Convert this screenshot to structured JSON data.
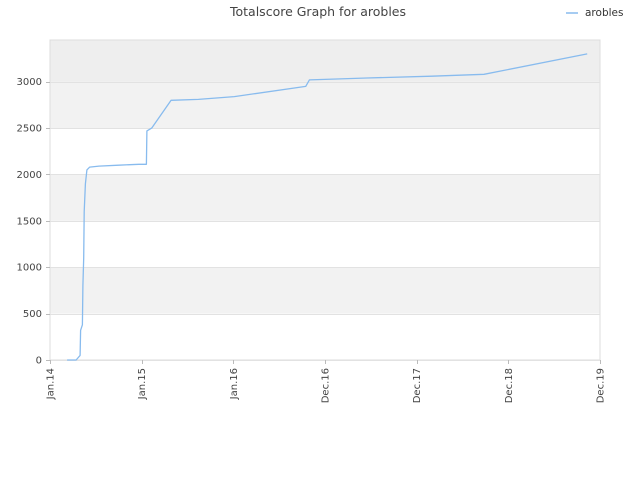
{
  "title": "Totalscore Graph for arobles",
  "chart_data": {
    "type": "line",
    "title": "Totalscore Graph for arobles",
    "xlabel": "",
    "ylabel": "",
    "x_tick_labels": [
      "Jan.14",
      "Jan.15",
      "Jan.16",
      "Dec.16",
      "Dec.17",
      "Dec.18",
      "Dec.19"
    ],
    "x_tick_dates": [
      "2014-01-01",
      "2015-01-01",
      "2016-01-01",
      "2016-12-31",
      "2017-12-31",
      "2018-12-31",
      "2019-12-31"
    ],
    "xlim": [
      "2014-01-01",
      "2019-12-31"
    ],
    "y_ticks": [
      0,
      500,
      1000,
      1500,
      2000,
      2500,
      3000
    ],
    "ylim": [
      0,
      3450
    ],
    "grid": true,
    "legend_position": "top-right",
    "series": [
      {
        "name": "arobles",
        "color": "#88bbee",
        "points": [
          [
            "2014-03-10",
            0
          ],
          [
            "2014-04-15",
            0
          ],
          [
            "2014-05-01",
            50
          ],
          [
            "2014-05-03",
            320
          ],
          [
            "2014-05-10",
            380
          ],
          [
            "2014-05-12",
            800
          ],
          [
            "2014-05-15",
            1100
          ],
          [
            "2014-05-17",
            1600
          ],
          [
            "2014-05-22",
            1900
          ],
          [
            "2014-05-28",
            2050
          ],
          [
            "2014-06-08",
            2080
          ],
          [
            "2014-07-15",
            2090
          ],
          [
            "2014-10-01",
            2100
          ],
          [
            "2014-12-20",
            2110
          ],
          [
            "2015-01-20",
            2110
          ],
          [
            "2015-01-22",
            2470
          ],
          [
            "2015-02-10",
            2500
          ],
          [
            "2015-04-28",
            2800
          ],
          [
            "2015-08-15",
            2810
          ],
          [
            "2016-01-05",
            2840
          ],
          [
            "2016-10-15",
            2950
          ],
          [
            "2016-10-30",
            3020
          ],
          [
            "2017-02-15",
            3030
          ],
          [
            "2017-06-15",
            3040
          ],
          [
            "2018-03-01",
            3060
          ],
          [
            "2018-09-25",
            3080
          ],
          [
            "2019-11-10",
            3300
          ]
        ]
      }
    ]
  }
}
